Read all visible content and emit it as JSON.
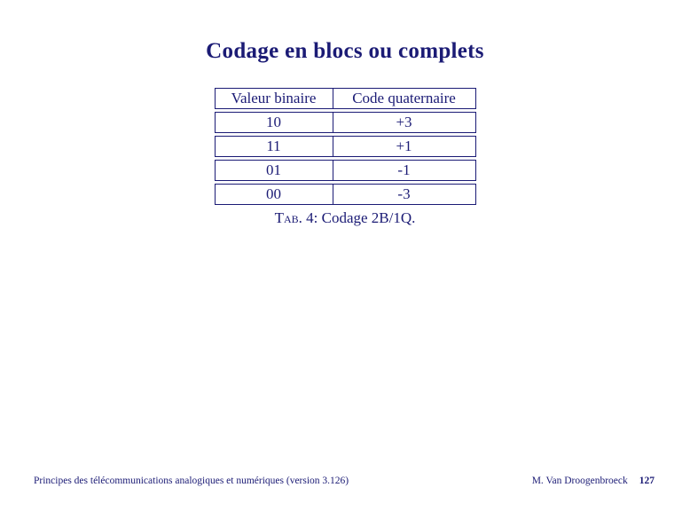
{
  "page": {
    "title": "Codage en blocs ou complets",
    "accent_color": "#1b1b75",
    "background_color": "#ffffff"
  },
  "table": {
    "headers": [
      "Valeur binaire",
      "Code quaternaire"
    ],
    "rows": [
      [
        "10",
        "+3"
      ],
      [
        "11",
        "+1"
      ],
      [
        "01",
        "-1"
      ],
      [
        "00",
        "-3"
      ]
    ]
  },
  "caption": {
    "label": "Tab.",
    "text": " 4: Codage 2B/1Q."
  },
  "footer": {
    "left": "Principes des télécommunications analogiques et numériques (version 3.126)",
    "author": "M. Van Droogenbroeck",
    "page_number": "127"
  }
}
